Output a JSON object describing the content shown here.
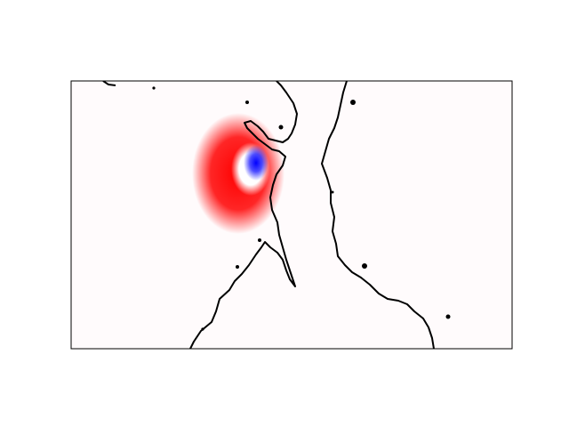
{
  "map": {
    "colormap": [
      "#0000ff",
      "#ffffff",
      "#ff0000"
    ]
  }
}
